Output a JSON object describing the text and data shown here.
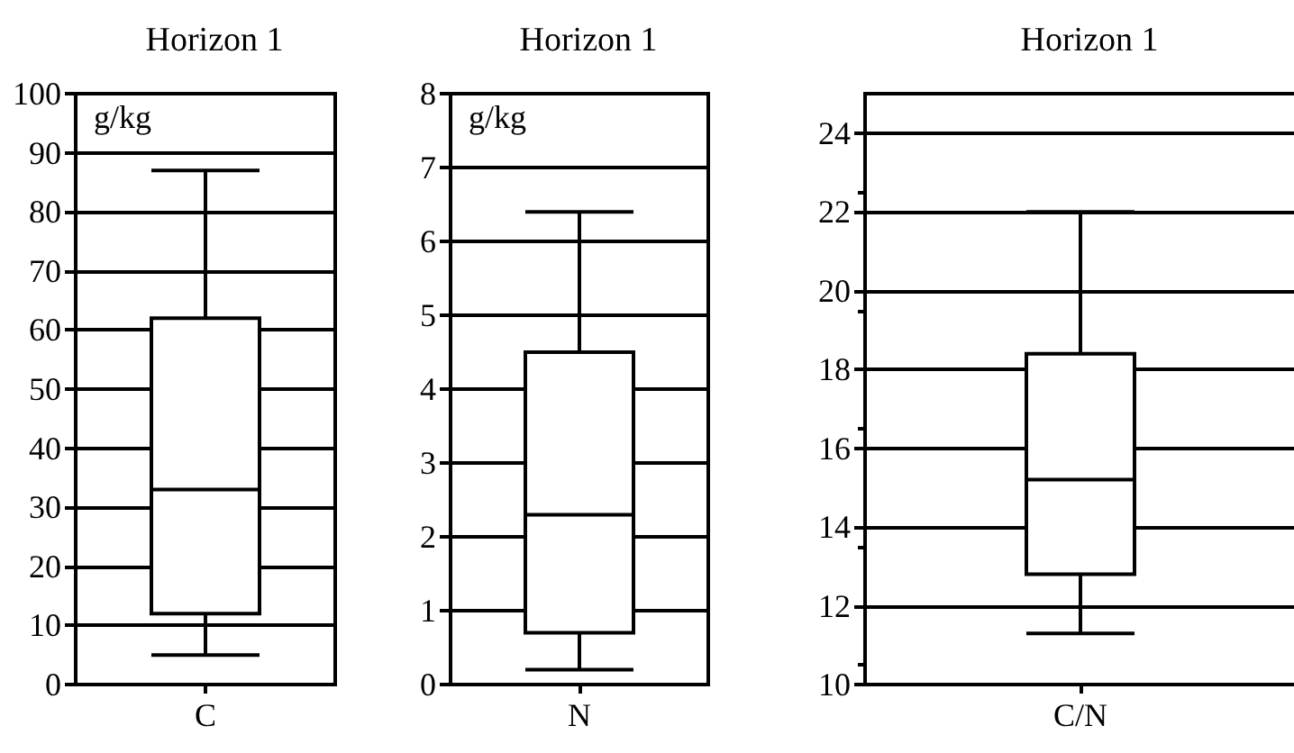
{
  "chart_data": [
    {
      "type": "box",
      "title": "Horizon 1",
      "categories": [
        "C"
      ],
      "boxes": [
        {
          "low": 5,
          "q1": 12,
          "median": 33,
          "q3": 62,
          "high": 87
        }
      ],
      "color": "#000000",
      "ylim": [
        0,
        100
      ],
      "yticks": [
        0,
        10,
        20,
        30,
        40,
        50,
        60,
        70,
        80,
        90,
        100
      ],
      "grid": "y",
      "annotations": [
        "g/kg"
      ]
    },
    {
      "type": "box",
      "title": "Horizon 1",
      "categories": [
        "N"
      ],
      "boxes": [
        {
          "low": 0.2,
          "q1": 0.7,
          "median": 2.3,
          "q3": 4.5,
          "high": 6.4
        }
      ],
      "color": "#000000",
      "ylim": [
        0,
        8
      ],
      "yticks": [
        0,
        1,
        2,
        3,
        4,
        5,
        6,
        7,
        8
      ],
      "grid": "y",
      "annotations": [
        "g/kg"
      ]
    },
    {
      "type": "box",
      "title": "Horizon 1",
      "categories": [
        "C/N"
      ],
      "boxes": [
        {
          "low": 11.3,
          "q1": 12.8,
          "median": 15.2,
          "q3": 18.4,
          "high": 22
        }
      ],
      "color": "#000000",
      "ylim": [
        10,
        25
      ],
      "yticks": [
        10,
        12,
        14,
        16,
        18,
        20,
        22,
        24
      ],
      "grid": "y"
    }
  ]
}
